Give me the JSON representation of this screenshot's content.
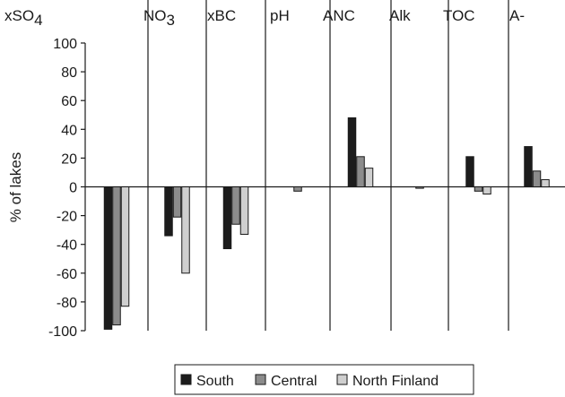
{
  "chart_data": {
    "type": "bar",
    "categories": [
      {
        "base": "xSO",
        "sub": "4"
      },
      {
        "base": "NO",
        "sub": "3"
      },
      {
        "base": "xBC",
        "sub": ""
      },
      {
        "base": "pH",
        "sub": ""
      },
      {
        "base": "ANC",
        "sub": ""
      },
      {
        "base": "Alk",
        "sub": ""
      },
      {
        "base": "TOC",
        "sub": ""
      },
      {
        "base": "A-",
        "sub": ""
      }
    ],
    "series": [
      {
        "name": "South",
        "color": "#1c1c1c",
        "values": [
          -99,
          -34,
          -43,
          0,
          48,
          0,
          21,
          28
        ]
      },
      {
        "name": "Central",
        "color": "#8c8c8c",
        "values": [
          -96,
          -21,
          -26,
          -3,
          21,
          -1,
          -3,
          11
        ]
      },
      {
        "name": "North Finland",
        "color": "#cfcfcf",
        "values": [
          -83,
          -60,
          -33,
          0,
          13,
          0,
          -5,
          5
        ]
      }
    ],
    "bar_overrides_note": "",
    "ylabel": "% of lakes",
    "ylim": [
      -100,
      100
    ],
    "ytick_step": 20,
    "y_ticks": [
      "100",
      "80",
      "60",
      "40",
      "20",
      "0",
      "-20",
      "-40",
      "-60",
      "-80",
      "-100"
    ],
    "grid": false,
    "legend_position": "bottom"
  }
}
